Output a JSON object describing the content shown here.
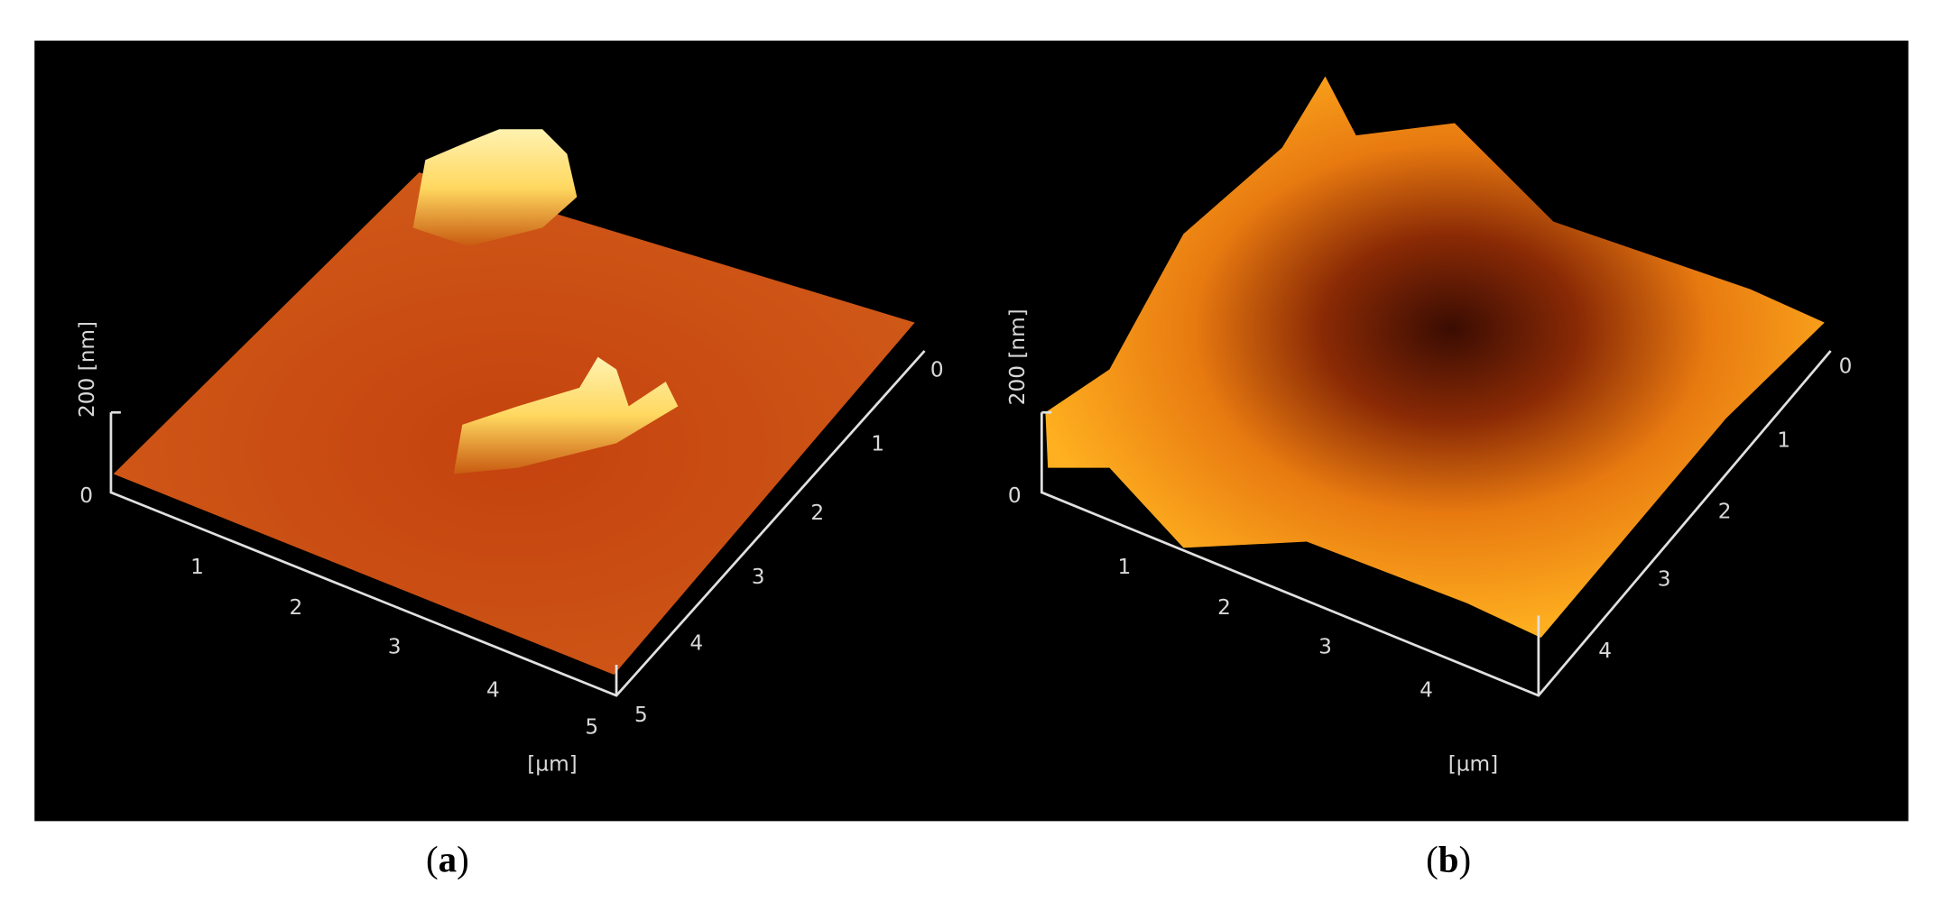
{
  "panels": [
    {
      "z_label": "200 [nm]",
      "z_ticks": [
        "0"
      ],
      "x_ticks": [
        "1",
        "2",
        "3",
        "4",
        "5"
      ],
      "y_ticks": [
        "0",
        "1",
        "2",
        "3",
        "4",
        "5"
      ],
      "unit": "[µm]",
      "caption": {
        "open": "(",
        "letter": "a",
        "close": ")"
      }
    },
    {
      "z_label": "200 [nm]",
      "z_ticks": [
        "0"
      ],
      "x_ticks": [
        "1",
        "2",
        "3",
        "4"
      ],
      "y_ticks": [
        "0",
        "1",
        "2",
        "3",
        "4"
      ],
      "unit": "[µm]",
      "caption": {
        "open": "(",
        "letter": "b",
        "close": ")"
      }
    }
  ]
}
